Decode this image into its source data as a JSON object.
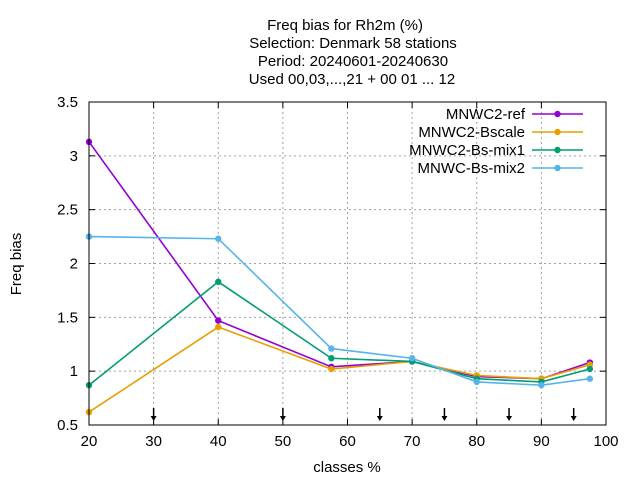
{
  "chart_data": {
    "type": "line",
    "title_lines": [
      "Freq bias  for Rh2m (%)",
      "Selection: Denmark     58 stations",
      "Period: 20240601-20240630",
      "Used 00,03,...,21 + 00 01 ... 12"
    ],
    "xlabel": "classes %",
    "ylabel": "Freq bias",
    "xlim": [
      20,
      100
    ],
    "ylim": [
      0.5,
      3.5
    ],
    "xticks": [
      20,
      30,
      40,
      50,
      60,
      70,
      80,
      90,
      100
    ],
    "yticks": [
      0.5,
      1,
      1.5,
      2,
      2.5,
      3,
      3.5
    ],
    "xtick_labels": [
      "20",
      "30",
      "40",
      "50",
      "60",
      "70",
      "80",
      "90",
      "100"
    ],
    "ytick_labels": [
      "0.5",
      "1",
      "1.5",
      "2",
      "2.5",
      "3",
      "3.5"
    ],
    "grid": true,
    "legend_position": "top-right",
    "class_markers_x": [
      30,
      50,
      65,
      75,
      85,
      95
    ],
    "x": [
      20,
      40,
      57.5,
      70,
      80,
      90,
      97.5
    ],
    "series": [
      {
        "name": "MNWC2-ref",
        "color": "#9400d3",
        "values": [
          3.13,
          1.47,
          1.04,
          1.09,
          0.95,
          0.93,
          1.08
        ]
      },
      {
        "name": "MNWC2-Bscale",
        "color": "#e69f00",
        "values": [
          0.62,
          1.41,
          1.02,
          1.09,
          0.96,
          0.93,
          1.06
        ]
      },
      {
        "name": "MNWC2-Bs-mix1",
        "color": "#009e73",
        "values": [
          0.87,
          1.83,
          1.12,
          1.09,
          0.93,
          0.9,
          1.02
        ]
      },
      {
        "name": "MNWC-Bs-mix2",
        "color": "#56b4e9",
        "values": [
          2.25,
          2.23,
          1.21,
          1.12,
          0.9,
          0.87,
          0.93
        ]
      }
    ]
  }
}
